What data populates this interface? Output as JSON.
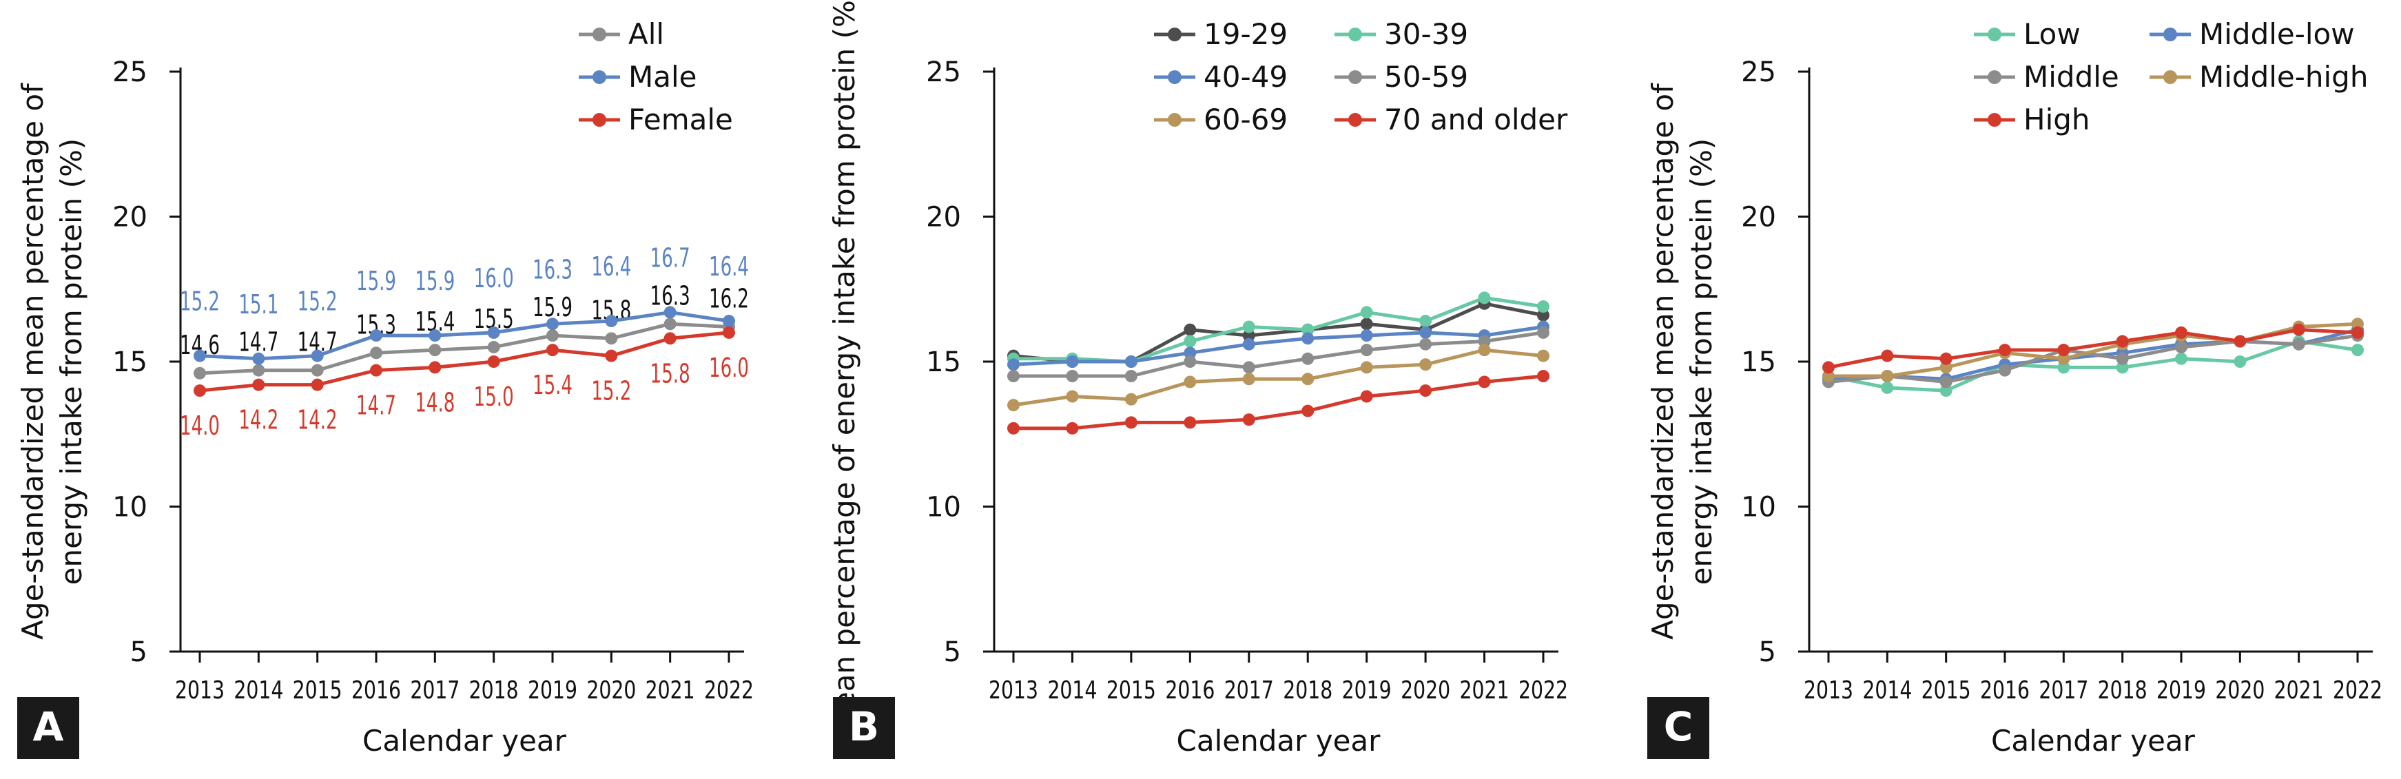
{
  "chart_data": [
    {
      "panel_label": "A",
      "type": "line",
      "xlabel": "Calendar year",
      "ylabel": [
        "Age-standardized mean percentage of",
        "energy intake from protein (%)"
      ],
      "x": [
        "2013",
        "2014",
        "2015",
        "2016",
        "2017",
        "2018",
        "2019",
        "2020",
        "2021",
        "2022"
      ],
      "ylim": [
        5,
        25
      ],
      "yticks": [
        "5",
        "10",
        "15",
        "20",
        "25"
      ],
      "legend_position": "top-right",
      "show_data_labels": true,
      "series": [
        {
          "name": "All",
          "color": "#8c8c8c",
          "values": [
            14.6,
            14.7,
            14.7,
            15.3,
            15.4,
            15.5,
            15.9,
            15.8,
            16.3,
            16.2
          ],
          "labels": [
            "14.6",
            "14.7",
            "14.7",
            "15.3",
            "15.4",
            "15.5",
            "15.9",
            "15.8",
            "16.3",
            "16.2"
          ],
          "label_color": "#111111",
          "label_side": "above"
        },
        {
          "name": "Male",
          "color": "#5b84c4",
          "values": [
            15.2,
            15.1,
            15.2,
            15.9,
            15.9,
            16.0,
            16.3,
            16.4,
            16.7,
            16.4
          ],
          "labels": [
            "15.2",
            "15.1",
            "15.2",
            "15.9",
            "15.9",
            "16.0",
            "16.3",
            "16.4",
            "16.7",
            "16.4"
          ],
          "label_color": "#5b84c4",
          "label_side": "above"
        },
        {
          "name": "Female",
          "color": "#d43a2c",
          "values": [
            14.0,
            14.2,
            14.2,
            14.7,
            14.8,
            15.0,
            15.4,
            15.2,
            15.8,
            16.0
          ],
          "labels": [
            "14.0",
            "14.2",
            "14.2",
            "14.7",
            "14.8",
            "15.0",
            "15.4",
            "15.2",
            "15.8",
            "16.0"
          ],
          "label_color": "#d43a2c",
          "label_side": "below"
        }
      ]
    },
    {
      "panel_label": "B",
      "type": "line",
      "xlabel": "Calendar year",
      "ylabel": [
        "Mean percentage of energy intake from protein (%)"
      ],
      "x": [
        "2013",
        "2014",
        "2015",
        "2016",
        "2017",
        "2018",
        "2019",
        "2020",
        "2021",
        "2022"
      ],
      "ylim": [
        5,
        25
      ],
      "yticks": [
        "5",
        "10",
        "15",
        "20",
        "25"
      ],
      "legend_position": "top-right",
      "show_data_labels": false,
      "series": [
        {
          "name": "19-29",
          "color": "#4d4d4d",
          "values": [
            15.2,
            15.0,
            15.0,
            16.1,
            15.9,
            16.1,
            16.3,
            16.1,
            17.0,
            16.6
          ]
        },
        {
          "name": "30-39",
          "color": "#66c9a4",
          "values": [
            15.1,
            15.1,
            15.0,
            15.7,
            16.2,
            16.1,
            16.7,
            16.4,
            17.2,
            16.9
          ]
        },
        {
          "name": "40-49",
          "color": "#5b84c4",
          "values": [
            14.9,
            15.0,
            15.0,
            15.3,
            15.6,
            15.8,
            15.9,
            16.0,
            15.9,
            16.2
          ]
        },
        {
          "name": "50-59",
          "color": "#8c8c8c",
          "values": [
            14.5,
            14.5,
            14.5,
            15.0,
            14.8,
            15.1,
            15.4,
            15.6,
            15.7,
            16.0
          ]
        },
        {
          "name": "60-69",
          "color": "#b8955a",
          "values": [
            13.5,
            13.8,
            13.7,
            14.3,
            14.4,
            14.4,
            14.8,
            14.9,
            15.4,
            15.2
          ]
        },
        {
          "name": "70 and older",
          "color": "#d43a2c",
          "values": [
            12.7,
            12.7,
            12.9,
            12.9,
            13.0,
            13.3,
            13.8,
            14.0,
            14.3,
            14.5
          ]
        }
      ]
    },
    {
      "panel_label": "C",
      "type": "line",
      "xlabel": "Calendar year",
      "ylabel": [
        "Age-standardized mean percentage of",
        "energy intake from protein (%)"
      ],
      "x": [
        "2013",
        "2014",
        "2015",
        "2016",
        "2017",
        "2018",
        "2019",
        "2020",
        "2021",
        "2022"
      ],
      "ylim": [
        5,
        25
      ],
      "yticks": [
        "5",
        "10",
        "15",
        "20",
        "25"
      ],
      "legend_position": "top-right",
      "show_data_labels": false,
      "series": [
        {
          "name": "Low",
          "color": "#66c9a4",
          "values": [
            14.5,
            14.1,
            14.0,
            14.9,
            14.8,
            14.8,
            15.1,
            15.0,
            15.7,
            15.4
          ]
        },
        {
          "name": "Middle-low",
          "color": "#5b84c4",
          "values": [
            14.4,
            14.5,
            14.4,
            14.9,
            15.1,
            15.3,
            15.6,
            15.7,
            15.6,
            16.1
          ]
        },
        {
          "name": "Middle",
          "color": "#8c8c8c",
          "values": [
            14.3,
            14.5,
            14.3,
            14.7,
            15.4,
            15.1,
            15.5,
            15.7,
            15.6,
            15.9
          ]
        },
        {
          "name": "Middle-high",
          "color": "#b8955a",
          "values": [
            14.5,
            14.5,
            14.8,
            15.3,
            15.1,
            15.6,
            15.9,
            15.7,
            16.2,
            16.3
          ]
        },
        {
          "name": "High",
          "color": "#d43a2c",
          "values": [
            14.8,
            15.2,
            15.1,
            15.4,
            15.4,
            15.7,
            16.0,
            15.7,
            16.1,
            16.0
          ]
        }
      ]
    }
  ]
}
